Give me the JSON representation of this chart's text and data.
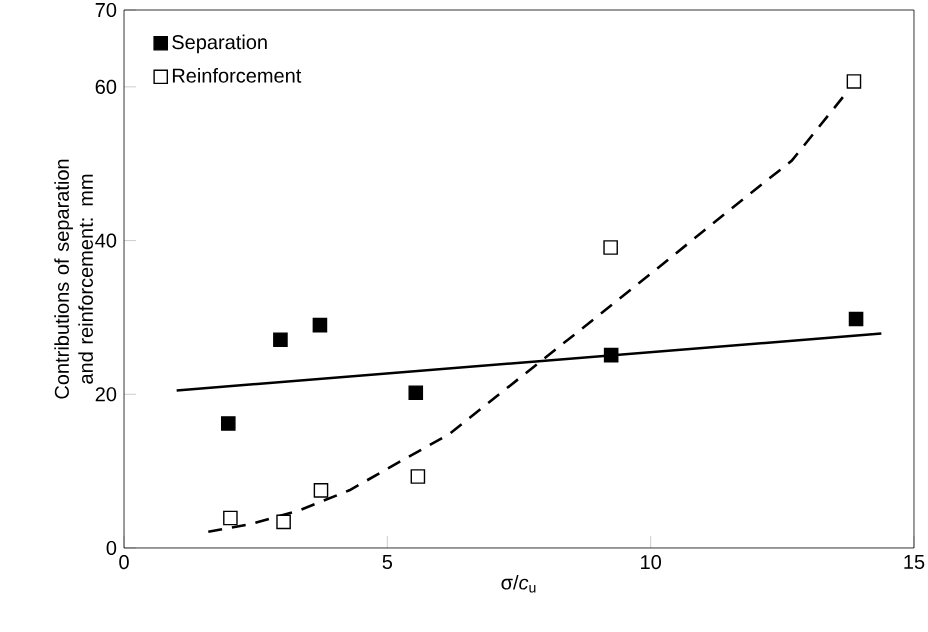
{
  "chart_data": {
    "type": "scatter",
    "xlabel": "σ/*c*$_{u}$",
    "ylabel": "Contributions of separation and reinforcement: mm",
    "xlim": [
      0,
      15
    ],
    "ylim": [
      0,
      70
    ],
    "xticks": [
      0,
      5,
      10,
      15
    ],
    "yticks": [
      0,
      20,
      40,
      60,
      70
    ],
    "grid": false,
    "legend": "top left",
    "marker": "square",
    "series": [
      {
        "name": "Separation",
        "color": "#000000",
        "x": [
          1.98,
          2.97,
          3.72,
          5.54,
          9.25,
          13.9
        ],
        "values": [
          16.2,
          27.1,
          29.0,
          20.2,
          25.1,
          29.8
        ]
      },
      {
        "name": "Reinforcement",
        "color": "#ffffff",
        "x": [
          2.02,
          3.03,
          3.74,
          5.58,
          9.24,
          13.86
        ],
        "values": [
          3.9,
          3.4,
          7.5,
          9.3,
          39.1,
          60.7
        ]
      },
      {
        "type": "line",
        "color": "#000000",
        "marker": "none",
        "line_style": "solid",
        "x": [
          1.0,
          14.38
        ],
        "values": [
          20.5,
          27.9
        ]
      },
      {
        "type": "line",
        "color": "#000000",
        "marker": "none",
        "line_style": "dashed",
        "x": [
          1.6,
          2.4,
          3.33,
          4.28,
          5.23,
          6.17,
          7.62,
          8.89,
          10.15,
          11.41,
          12.68,
          13.69
        ],
        "values": [
          2.1,
          3.1,
          4.9,
          7.5,
          11.2,
          14.8,
          22.7,
          29.6,
          36.5,
          43.5,
          50.4,
          59.0
        ]
      }
    ]
  }
}
